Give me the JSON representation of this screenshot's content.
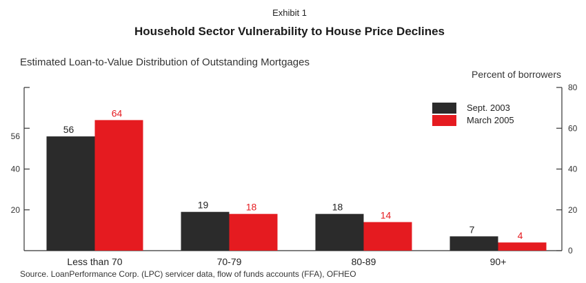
{
  "exhibit_label": "Exhibit 1",
  "chart_data": {
    "type": "bar",
    "title": "Household Sector Vulnerability to House Price Declines",
    "subtitle": "Estimated Loan-to-Value Distribution of Outstanding Mortgages",
    "ylabel": "Percent of borrowers",
    "categories": [
      "Less than 70",
      "70-79",
      "80-89",
      "90+"
    ],
    "series": [
      {
        "name": "Sept. 2003",
        "values": [
          56,
          19,
          18,
          7
        ],
        "color": "#2b2b2b",
        "label_color": "#222222"
      },
      {
        "name": "March 2005",
        "values": [
          64,
          18,
          14,
          4
        ],
        "color": "#e51b20",
        "label_color": "#e51b20"
      }
    ],
    "ylim": [
      0,
      80
    ],
    "right_ticks": [
      "0",
      "20",
      "40",
      "60",
      "80"
    ],
    "left_ticks": [
      "20",
      "40",
      "56"
    ],
    "legend_position": "top-right",
    "grid": false,
    "source": "Source. LoanPerformance Corp. (LPC) servicer data, flow of funds accounts (FFA), OFHEO"
  }
}
